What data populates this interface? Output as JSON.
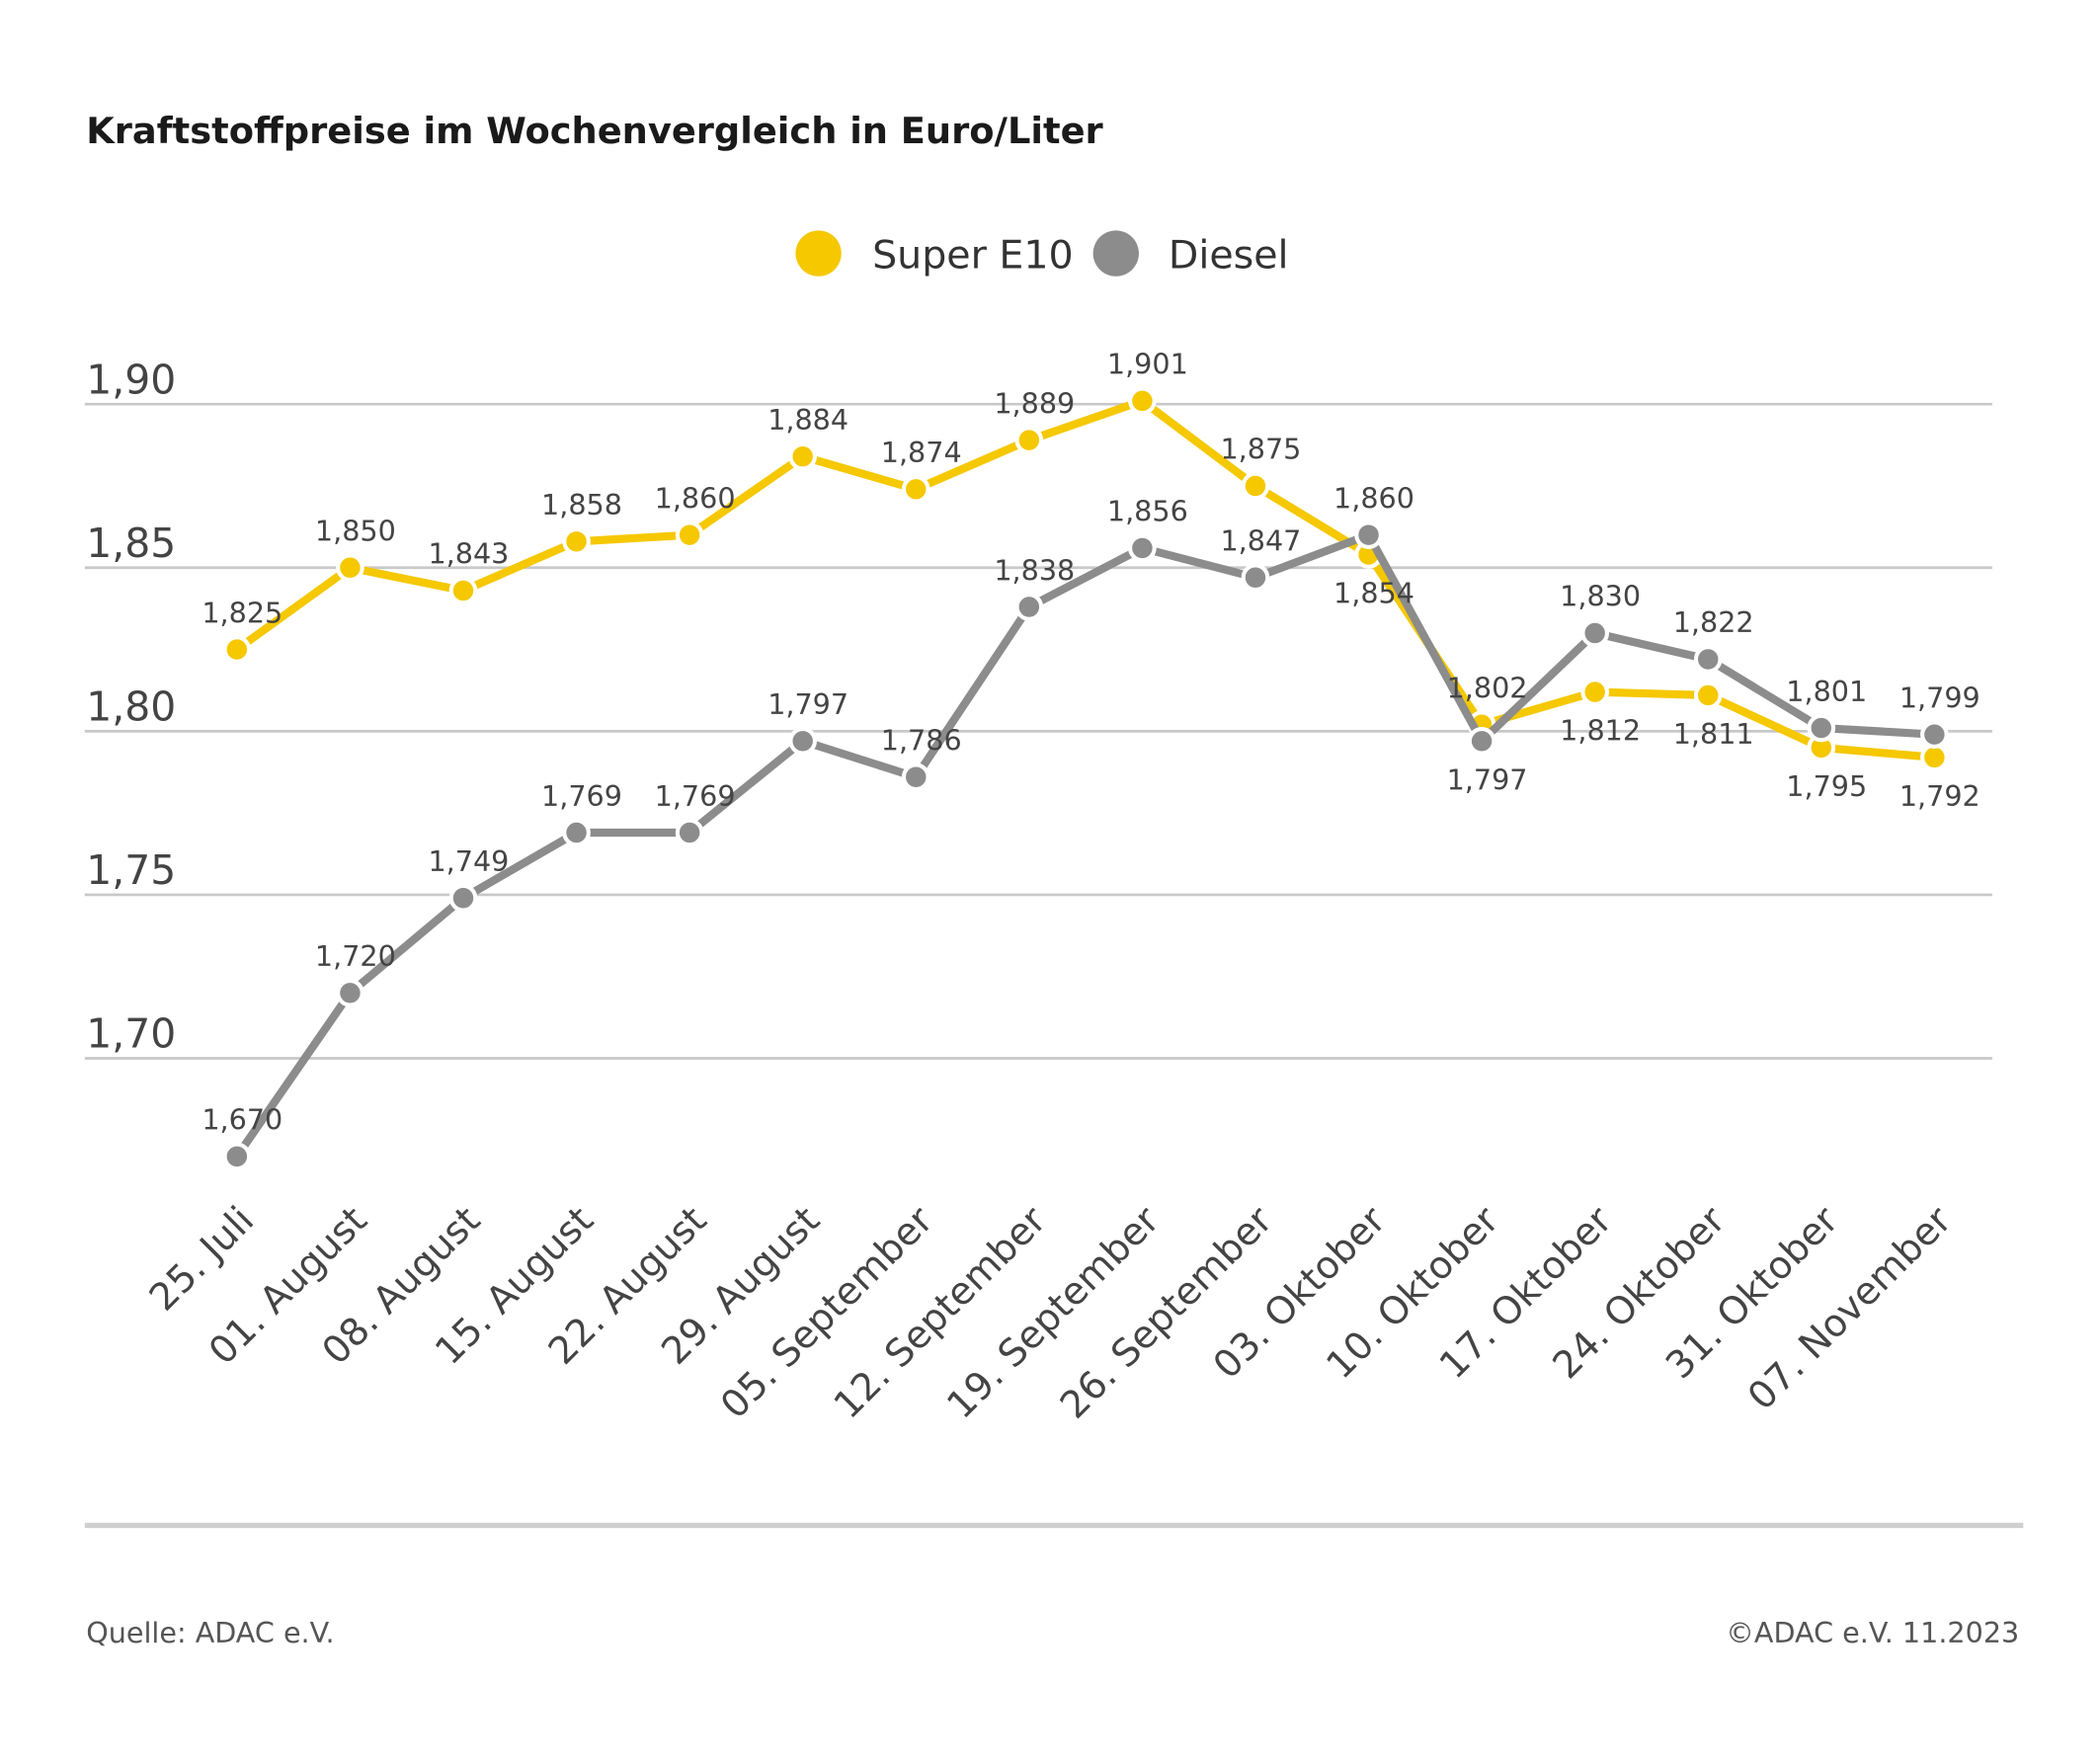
{
  "chart_data": {
    "type": "line",
    "title": "Kraftstoffpreise im Wochenvergleich in Euro/Liter",
    "categories": [
      "25. Juli",
      "01. August",
      "08. August",
      "15. August",
      "22. August",
      "29. August",
      "05. September",
      "12. September",
      "19. September",
      "26. September",
      "03. Oktober",
      "10. Oktober",
      "17. Oktober",
      "24. Oktober",
      "31. Oktober",
      "07. November"
    ],
    "series": [
      {
        "name": "Super E10",
        "color": "#f5c800",
        "values": [
          1.825,
          1.85,
          1.843,
          1.858,
          1.86,
          1.884,
          1.874,
          1.889,
          1.901,
          1.875,
          1.854,
          1.802,
          1.812,
          1.811,
          1.795,
          1.792
        ],
        "labels": [
          "1,825",
          "1,850",
          "1,843",
          "1,858",
          "1,860",
          "1,884",
          "1,874",
          "1,889",
          "1,901",
          "1,875",
          "1,854",
          "1,802",
          "1,812",
          "1,811",
          "1,795",
          "1,792"
        ]
      },
      {
        "name": "Diesel",
        "color": "#8c8c8c",
        "values": [
          1.67,
          1.72,
          1.749,
          1.769,
          1.769,
          1.797,
          1.786,
          1.838,
          1.856,
          1.847,
          1.86,
          1.797,
          1.83,
          1.822,
          1.801,
          1.799
        ],
        "labels": [
          "1,670",
          "1,720",
          "1,749",
          "1,769",
          "1,769",
          "1,797",
          "1,786",
          "1,838",
          "1,856",
          "1,847",
          "1,860",
          "1,797",
          "1,830",
          "1,822",
          "1,801",
          "1,799"
        ]
      }
    ],
    "yticks": [
      1.7,
      1.75,
      1.8,
      1.85,
      1.9
    ],
    "ytick_labels": [
      "1,70",
      "1,75",
      "1,80",
      "1,85",
      "1,90"
    ],
    "ylim": [
      1.7,
      1.9
    ],
    "grid": true,
    "legend_position": "top-center",
    "xlabel": "",
    "ylabel": ""
  },
  "footer": {
    "source": "Quelle: ADAC e.V.",
    "copyright": "©ADAC e.V. 11.2023"
  }
}
